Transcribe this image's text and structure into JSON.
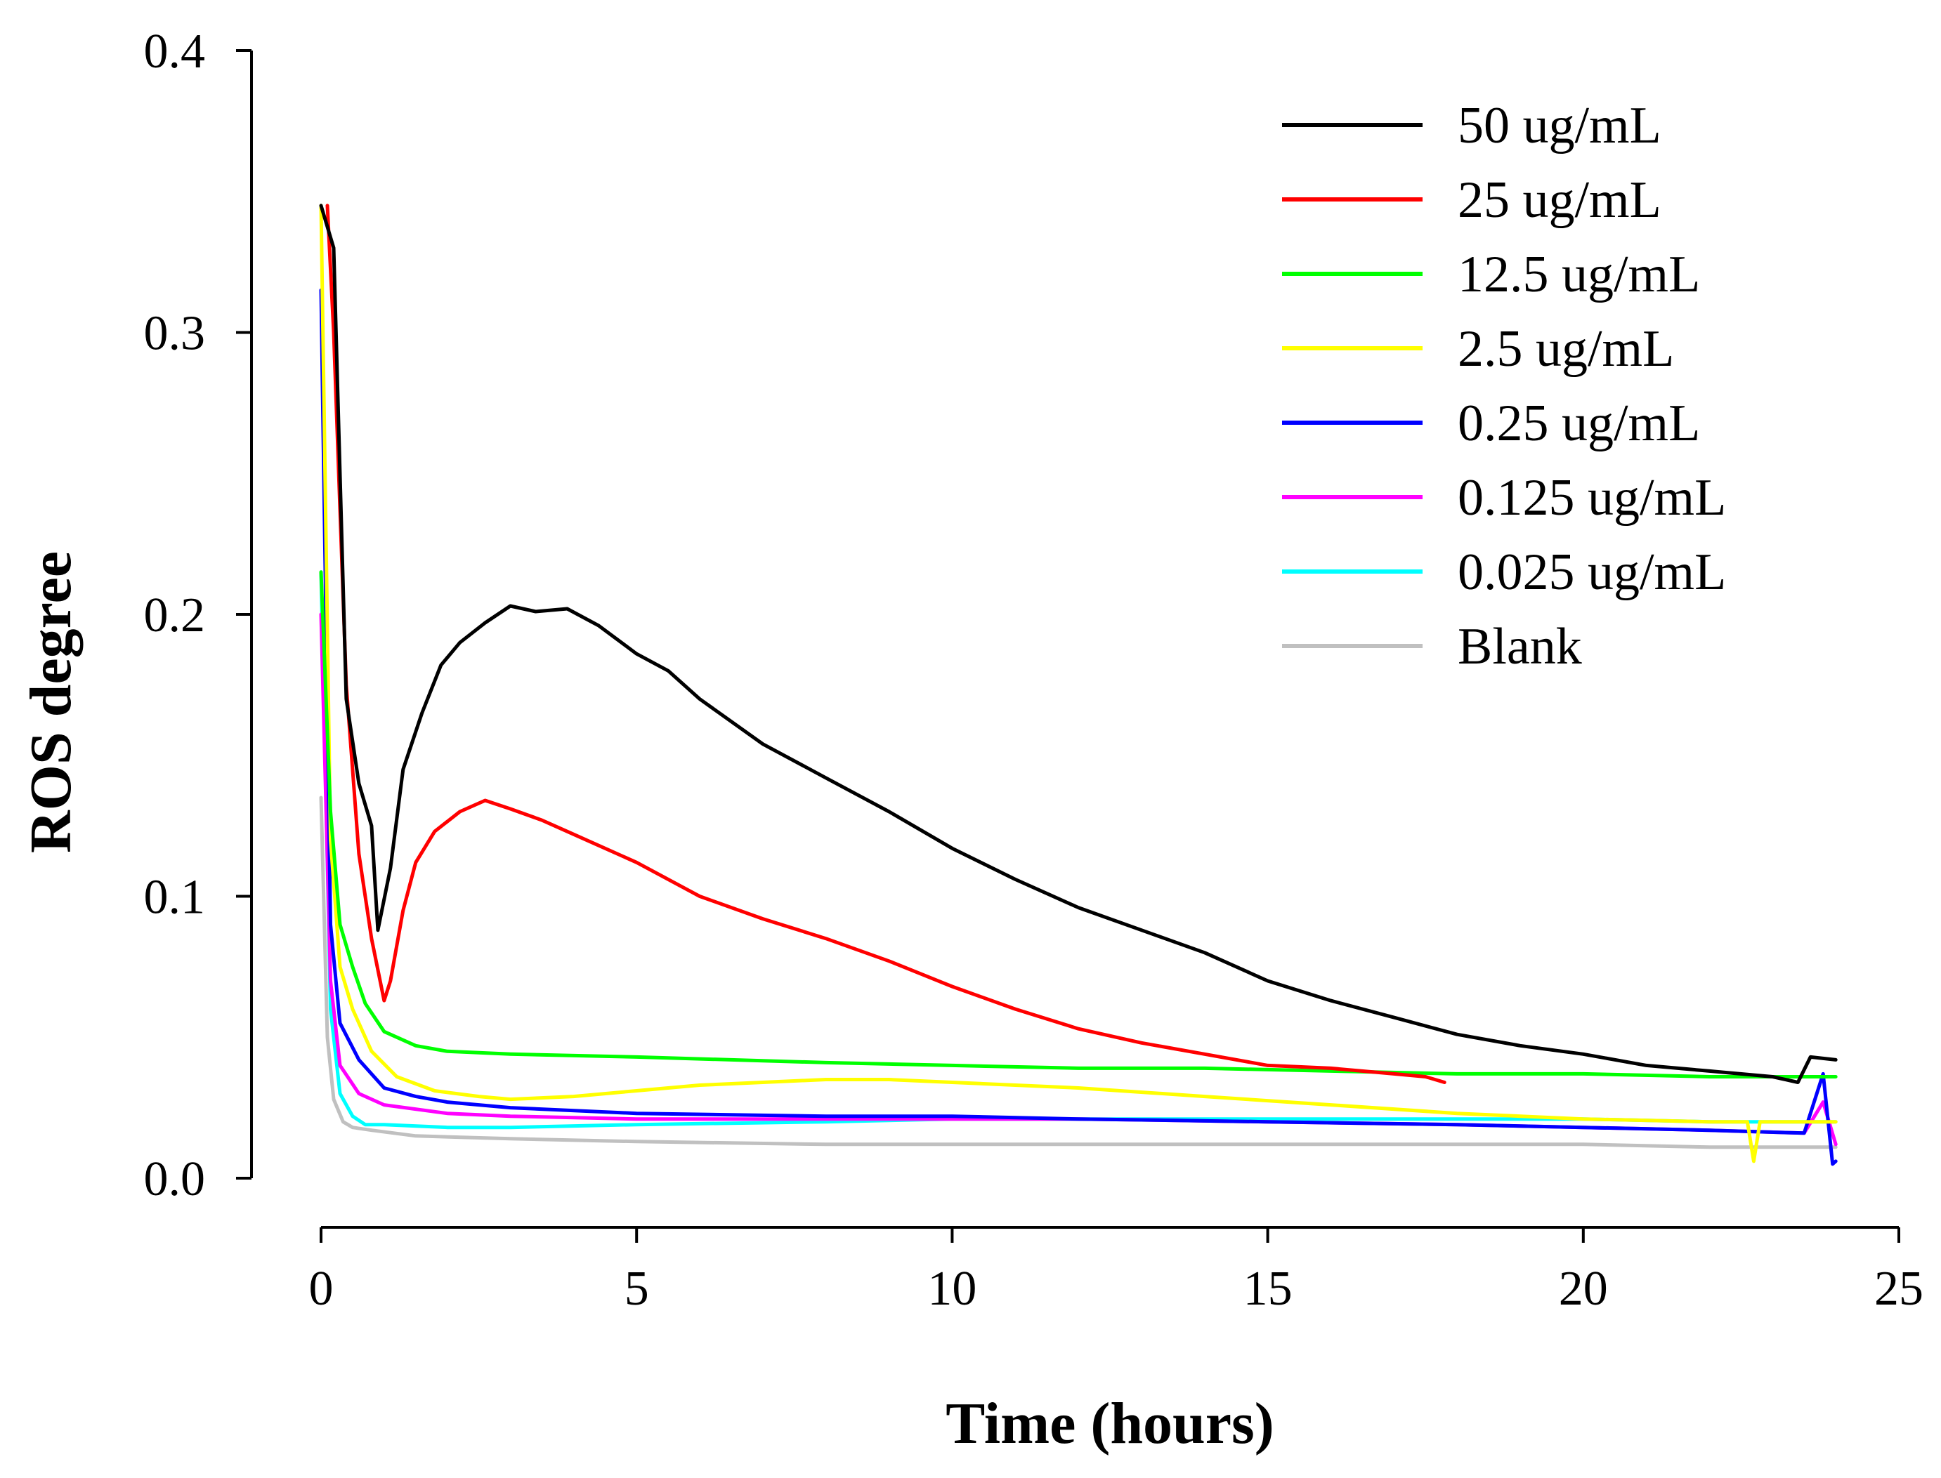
{
  "chart_data": {
    "type": "line",
    "title": "",
    "xlabel": "Time (hours)",
    "ylabel": "ROS degree",
    "xlim": [
      0,
      25
    ],
    "ylim": [
      0.0,
      0.4
    ],
    "x_ticks": [
      "0",
      "5",
      "10",
      "15",
      "20",
      "25"
    ],
    "y_ticks": [
      "0.0",
      "0.1",
      "0.2",
      "0.3",
      "0.4"
    ],
    "grid": false,
    "legend_position": "top-right",
    "series": [
      {
        "name": "50 ug/mL",
        "color": "#000000",
        "x": [
          0,
          0.2,
          0.4,
          0.6,
          0.8,
          0.9,
          1.1,
          1.3,
          1.6,
          1.9,
          2.2,
          2.6,
          3.0,
          3.4,
          3.9,
          4.4,
          5.0,
          5.5,
          6.0,
          7.0,
          8.0,
          9.0,
          10.0,
          11.0,
          12.0,
          13.0,
          14.0,
          15.0,
          16.0,
          17.0,
          18.0,
          19.0,
          20.0,
          21.0,
          22.0,
          23.0,
          23.4,
          23.6,
          24.0
        ],
        "y": [
          0.345,
          0.33,
          0.17,
          0.14,
          0.125,
          0.088,
          0.11,
          0.145,
          0.165,
          0.182,
          0.19,
          0.197,
          0.203,
          0.201,
          0.202,
          0.196,
          0.186,
          0.18,
          0.17,
          0.154,
          0.142,
          0.13,
          0.117,
          0.106,
          0.096,
          0.088,
          0.08,
          0.07,
          0.063,
          0.057,
          0.051,
          0.047,
          0.044,
          0.04,
          0.038,
          0.036,
          0.034,
          0.043,
          0.042
        ]
      },
      {
        "name": "25 ug/mL",
        "color": "#ff0000",
        "x": [
          0.1,
          0.2,
          0.4,
          0.6,
          0.8,
          1.0,
          1.1,
          1.3,
          1.5,
          1.8,
          2.2,
          2.6,
          3.0,
          3.5,
          4.0,
          5.0,
          6.0,
          7.0,
          8.0,
          9.0,
          10.0,
          11.0,
          12.0,
          13.0,
          14.0,
          15.0,
          16.0,
          17.0,
          17.5,
          17.8
        ],
        "y": [
          0.345,
          0.3,
          0.175,
          0.115,
          0.085,
          0.063,
          0.07,
          0.095,
          0.112,
          0.123,
          0.13,
          0.134,
          0.131,
          0.127,
          0.122,
          0.112,
          0.1,
          0.092,
          0.085,
          0.077,
          0.068,
          0.06,
          0.053,
          0.048,
          0.044,
          0.04,
          0.039,
          0.037,
          0.036,
          0.034
        ]
      },
      {
        "name": "12.5 ug/mL",
        "color": "#00ff00",
        "x": [
          0,
          0.15,
          0.3,
          0.5,
          0.7,
          1.0,
          1.5,
          2.0,
          3.0,
          5.0,
          8.0,
          10.0,
          12.0,
          14.0,
          16.0,
          18.0,
          20.0,
          22.0,
          24.0
        ],
        "y": [
          0.215,
          0.13,
          0.09,
          0.075,
          0.062,
          0.052,
          0.047,
          0.045,
          0.044,
          0.043,
          0.041,
          0.04,
          0.039,
          0.039,
          0.038,
          0.037,
          0.037,
          0.036,
          0.036
        ]
      },
      {
        "name": "2.5 ug/mL",
        "color": "#ffff00",
        "x": [
          0,
          0.15,
          0.3,
          0.5,
          0.8,
          1.2,
          1.8,
          2.5,
          3.0,
          4.0,
          5.0,
          6.0,
          7.0,
          8.0,
          9.0,
          10.0,
          12.0,
          14.0,
          16.0,
          18.0,
          20.0,
          22.0,
          22.6,
          22.7,
          22.8,
          24.0
        ],
        "y": [
          0.345,
          0.12,
          0.075,
          0.06,
          0.045,
          0.036,
          0.031,
          0.029,
          0.028,
          0.029,
          0.031,
          0.033,
          0.034,
          0.035,
          0.035,
          0.034,
          0.032,
          0.029,
          0.026,
          0.023,
          0.021,
          0.02,
          0.02,
          0.006,
          0.02,
          0.02
        ]
      },
      {
        "name": "0.25 ug/mL",
        "color": "#0000ff",
        "x": [
          0,
          0.15,
          0.3,
          0.6,
          1.0,
          1.5,
          2.0,
          3.0,
          5.0,
          8.0,
          10.0,
          12.0,
          15.0,
          18.0,
          20.0,
          22.0,
          23.5,
          23.8,
          23.95,
          24.0
        ],
        "y": [
          0.315,
          0.09,
          0.055,
          0.042,
          0.032,
          0.029,
          0.027,
          0.025,
          0.023,
          0.022,
          0.022,
          0.021,
          0.02,
          0.019,
          0.018,
          0.017,
          0.016,
          0.037,
          0.005,
          0.006
        ]
      },
      {
        "name": "0.125 ug/mL",
        "color": "#ff00ff",
        "x": [
          0,
          0.15,
          0.3,
          0.6,
          1.0,
          2.0,
          3.0,
          5.0,
          8.0,
          10.0,
          12.0,
          15.0,
          18.0,
          20.0,
          22.0,
          23.5,
          23.8,
          24.0
        ],
        "y": [
          0.2,
          0.07,
          0.04,
          0.03,
          0.026,
          0.023,
          0.022,
          0.021,
          0.021,
          0.021,
          0.021,
          0.02,
          0.019,
          0.018,
          0.017,
          0.016,
          0.027,
          0.012
        ]
      },
      {
        "name": "0.025 ug/mL",
        "color": "#00ffff",
        "x": [
          0,
          0.15,
          0.3,
          0.5,
          0.7,
          1.0,
          2.0,
          3.0,
          5.0,
          8.0,
          10.0,
          12.0,
          15.0,
          18.0,
          20.0,
          22.0,
          24.0
        ],
        "y": [
          0.215,
          0.06,
          0.03,
          0.022,
          0.019,
          0.019,
          0.018,
          0.018,
          0.019,
          0.02,
          0.021,
          0.021,
          0.021,
          0.021,
          0.021,
          0.02,
          0.02
        ]
      },
      {
        "name": "Blank",
        "color": "#c0c0c0",
        "x": [
          0,
          0.1,
          0.2,
          0.35,
          0.5,
          0.8,
          1.5,
          3.0,
          5.0,
          8.0,
          10.0,
          12.0,
          15.0,
          18.0,
          20.0,
          22.0,
          24.0
        ],
        "y": [
          0.135,
          0.05,
          0.028,
          0.02,
          0.018,
          0.017,
          0.015,
          0.014,
          0.013,
          0.012,
          0.012,
          0.012,
          0.012,
          0.012,
          0.012,
          0.011,
          0.011
        ]
      }
    ]
  }
}
